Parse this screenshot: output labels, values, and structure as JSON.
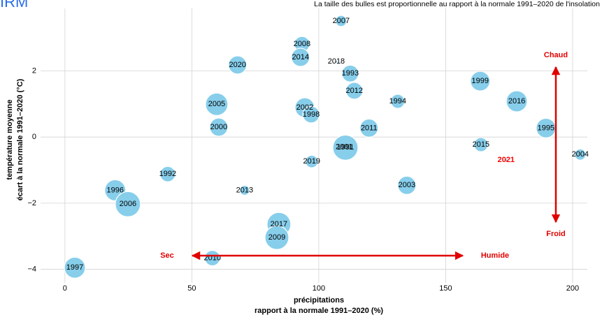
{
  "chart_data": {
    "type": "bubble",
    "title": "IRM",
    "subtitle": "La taille des bulles est proportionnelle au rapport à la normale 1991–2020 de l'insolation",
    "x_label": [
      "précipitations",
      "rapport à la normale 1991–2020 (%)"
    ],
    "y_label": [
      "température moyenne",
      "écart à la normale 1991–2020 (°C)"
    ],
    "labels": [
      "1997",
      "1996",
      "2006",
      "1992",
      "2010",
      "2005",
      "2000",
      "2020",
      "2013",
      "2017",
      "2009",
      "2008",
      "2014",
      "2002",
      "1998",
      "2019",
      "2007",
      "2018",
      "1993",
      "2012",
      "2001",
      "1991",
      "2011",
      "1994",
      "2003",
      "1999",
      "2015",
      "2016",
      "1995",
      "2004",
      "2021"
    ],
    "x": [
      3.9,
      19.8,
      24.8,
      40.5,
      58.1,
      59.8,
      60.6,
      68.0,
      70.8,
      84.3,
      83.5,
      93.4,
      92.8,
      94.5,
      97.0,
      97.2,
      108.8,
      106.9,
      112.4,
      114.0,
      110.0,
      110.5,
      119.8,
      131.1,
      134.7,
      163.6,
      163.9,
      178.0,
      189.5,
      203.0,
      173.8
    ],
    "y": [
      -3.95,
      -1.61,
      -2.03,
      -1.12,
      -3.66,
      0.99,
      0.3,
      2.18,
      -1.61,
      -2.64,
      -3.04,
      2.81,
      2.41,
      0.89,
      0.68,
      -0.74,
      3.51,
      2.28,
      1.92,
      1.4,
      -0.3,
      -0.32,
      0.27,
      1.08,
      -1.46,
      1.69,
      -0.23,
      1.08,
      0.27,
      -0.53,
      -0.7
    ],
    "sizes": [
      105,
      105,
      126,
      77,
      77,
      112,
      91,
      91,
      49,
      119,
      119,
      77,
      91,
      98,
      84,
      63,
      56,
      14,
      84,
      84,
      112,
      126,
      91,
      70,
      91,
      98,
      70,
      105,
      98,
      56,
      14
    ],
    "color": "#87ceeb",
    "highlight_index": 30,
    "highlight_color": "#ff0000",
    "xlim": [
      -9.6,
      205.8
    ],
    "ylim": [
      -4.41,
      3.89
    ],
    "xticks": [
      0,
      50,
      100,
      150,
      200
    ],
    "yticks": [
      {
        "value": -4,
        "label": "−4"
      },
      {
        "value": -2,
        "label": "−2"
      },
      0,
      2
    ],
    "grid": true,
    "annotations": {
      "dry": "Sec",
      "wet": "Humide",
      "hot": "Chaud",
      "cold": "Froid"
    }
  }
}
